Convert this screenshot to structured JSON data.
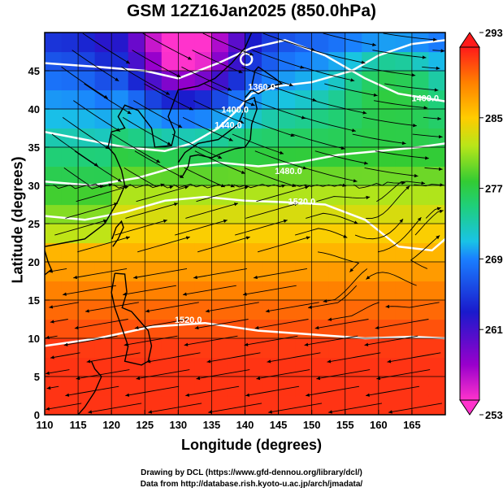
{
  "title": "GSM 12Z16Jan2025 (850.0hPa)",
  "chart_data": {
    "type": "heatmap",
    "xlabel": "Longitude (degrees)",
    "ylabel": "Latitude  (degrees)",
    "xlim": [
      110,
      170
    ],
    "ylim": [
      0,
      50
    ],
    "xticks": [
      110,
      115,
      120,
      125,
      130,
      135,
      140,
      145,
      150,
      155,
      160,
      165
    ],
    "yticks": [
      0,
      5,
      10,
      15,
      20,
      25,
      30,
      35,
      40,
      45
    ],
    "grid": true,
    "colorbar": {
      "ticks": [
        253,
        261,
        269,
        277,
        285,
        293
      ],
      "range": [
        253,
        293
      ]
    },
    "contour_labels": [
      {
        "text": "1400.0",
        "lon": 138.5,
        "lat": 39.5
      },
      {
        "text": "1440.0",
        "lon": 137.5,
        "lat": 37.5
      },
      {
        "text": "1360.0",
        "lon": 142.5,
        "lat": 42.5
      },
      {
        "text": "1480.0",
        "lon": 146.5,
        "lat": 31.5
      },
      {
        "text": "1520.0",
        "lon": 148.5,
        "lat": 27.5
      },
      {
        "text": "1520.0",
        "lon": 131.5,
        "lat": 12.0
      },
      {
        "text": "1400.0",
        "lon": 167.0,
        "lat": 41.0
      }
    ]
  },
  "footer": {
    "line1": "Drawing by DCL (https://www.gfd-dennou.org/library/dcl/)",
    "line2": "Data from http://database.rish.kyoto-u.ac.jp/arch/jmadata/"
  }
}
